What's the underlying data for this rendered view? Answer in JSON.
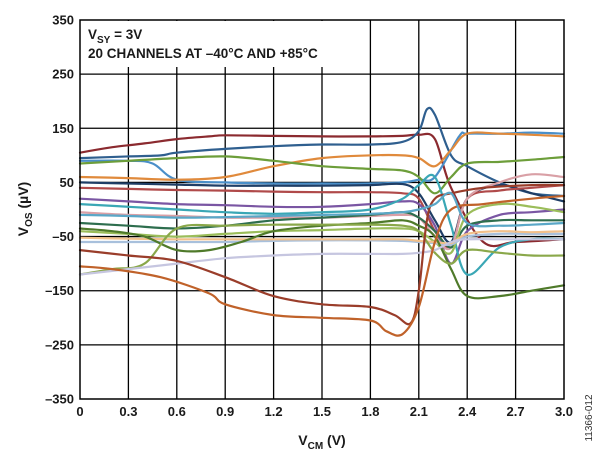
{
  "chart_data": {
    "type": "line",
    "xlabel": {
      "main": "V",
      "sub": "CM",
      "suffix": " (V)"
    },
    "ylabel": {
      "main": "V",
      "sub": "OS",
      "suffix": " (µV)"
    },
    "xlim": [
      0,
      3.0
    ],
    "ylim": [
      -350,
      350
    ],
    "xticks": [
      "0",
      "0.3",
      "0.6",
      "0.9",
      "1.2",
      "1.5",
      "1.8",
      "2.1",
      "2.4",
      "2.7",
      "3.0"
    ],
    "yticks": [
      "350",
      "250",
      "150",
      "50",
      "–50",
      "–150",
      "–250",
      "–350"
    ],
    "grid": true,
    "annotations": {
      "line1": {
        "main": "V",
        "sub": "SY",
        "suffix": " = 3V"
      },
      "line2": "20 CHANNELS AT –40°C AND +85°C"
    },
    "figure_id": "11366-012",
    "series": [
      {
        "color": "#8b2a2f",
        "x": [
          0,
          0.2,
          0.4,
          0.6,
          0.8,
          0.9,
          1.2,
          1.5,
          1.8,
          2.0,
          2.1,
          2.2,
          2.3,
          2.5,
          2.7,
          3.0
        ],
        "y": [
          105,
          115,
          122,
          130,
          135,
          137,
          136,
          135,
          135,
          136,
          138,
          130,
          40,
          -60,
          -60,
          -55
        ]
      },
      {
        "color": "#2f5f8f",
        "x": [
          0,
          0.3,
          0.5,
          0.6,
          0.9,
          1.2,
          1.5,
          1.8,
          2.0,
          2.1,
          2.15,
          2.2,
          2.3,
          2.4,
          2.6,
          2.8,
          3.0
        ],
        "y": [
          95,
          98,
          100,
          105,
          112,
          117,
          120,
          120,
          125,
          145,
          185,
          175,
          100,
          80,
          50,
          30,
          25
        ]
      },
      {
        "color": "#4a8fc9",
        "x": [
          0,
          0.3,
          0.45,
          0.6,
          0.9,
          1.2,
          1.5,
          1.8,
          2.0,
          2.1,
          2.2,
          2.35,
          2.4,
          2.6,
          2.8,
          3.0
        ],
        "y": [
          90,
          90,
          85,
          55,
          50,
          48,
          48,
          48,
          50,
          55,
          60,
          135,
          140,
          140,
          142,
          140
        ]
      },
      {
        "color": "#e08a3c",
        "x": [
          0,
          0.3,
          0.6,
          0.9,
          1.2,
          1.5,
          1.8,
          2.0,
          2.1,
          2.2,
          2.3,
          2.4,
          2.6,
          2.8,
          3.0
        ],
        "y": [
          60,
          58,
          55,
          60,
          80,
          95,
          100,
          100,
          95,
          80,
          110,
          140,
          140,
          138,
          135
        ]
      },
      {
        "color": "#6d9e3a",
        "x": [
          0,
          0.3,
          0.6,
          0.9,
          1.2,
          1.5,
          1.8,
          2.0,
          2.1,
          2.2,
          2.3,
          2.4,
          2.6,
          2.8,
          3.0
        ],
        "y": [
          85,
          90,
          95,
          98,
          90,
          80,
          75,
          72,
          60,
          30,
          60,
          85,
          88,
          92,
          97
        ]
      },
      {
        "color": "#1f3e66",
        "x": [
          0,
          0.3,
          0.6,
          0.9,
          1.2,
          1.5,
          1.8,
          2.0,
          2.1,
          2.2,
          2.3,
          2.4,
          2.6,
          2.8,
          3.0
        ],
        "y": [
          50,
          48,
          46,
          44,
          44,
          44,
          45,
          47,
          30,
          -20,
          -60,
          20,
          45,
          30,
          15
        ]
      },
      {
        "color": "#b04a4a",
        "x": [
          0,
          0.3,
          0.6,
          0.9,
          1.2,
          1.5,
          1.8,
          2.0,
          2.1,
          2.2,
          2.3,
          2.4,
          2.6,
          2.8,
          3.0
        ],
        "y": [
          40,
          38,
          36,
          35,
          33,
          32,
          32,
          30,
          20,
          -40,
          -70,
          20,
          35,
          40,
          45
        ]
      },
      {
        "color": "#7a56a3",
        "x": [
          0,
          0.3,
          0.6,
          0.9,
          1.2,
          1.5,
          1.8,
          2.0,
          2.1,
          2.2,
          2.3,
          2.4,
          2.6,
          2.8,
          3.0
        ],
        "y": [
          20,
          15,
          10,
          8,
          5,
          5,
          10,
          15,
          10,
          -30,
          -100,
          -40,
          -10,
          -5,
          0
        ]
      },
      {
        "color": "#3aa7b5",
        "x": [
          0,
          0.3,
          0.6,
          0.9,
          1.2,
          1.5,
          1.8,
          2.0,
          2.1,
          2.2,
          2.3,
          2.4,
          2.6,
          2.8,
          3.0
        ],
        "y": [
          10,
          5,
          0,
          -5,
          -8,
          -5,
          0,
          20,
          45,
          60,
          -30,
          -120,
          -70,
          -55,
          -55
        ]
      },
      {
        "color": "#d9a0a6",
        "x": [
          0,
          0.3,
          0.6,
          0.9,
          1.2,
          1.5,
          1.8,
          2.0,
          2.1,
          2.2,
          2.3,
          2.4,
          2.6,
          2.8,
          3.0
        ],
        "y": [
          -5,
          -10,
          -12,
          -15,
          -15,
          -15,
          -12,
          -10,
          -15,
          -50,
          -70,
          20,
          50,
          65,
          60
        ]
      },
      {
        "color": "#2e6e4e",
        "x": [
          0,
          0.3,
          0.6,
          0.9,
          1.2,
          1.5,
          1.8,
          2.0,
          2.1,
          2.2,
          2.3,
          2.4,
          2.6,
          2.8,
          3.0
        ],
        "y": [
          -25,
          -30,
          -35,
          -30,
          -20,
          -15,
          -10,
          -5,
          -15,
          -40,
          -70,
          -30,
          -20,
          -20,
          -20
        ]
      },
      {
        "color": "#9bbd5a",
        "x": [
          0,
          0.3,
          0.6,
          0.9,
          1.2,
          1.5,
          1.8,
          2.0,
          2.1,
          2.2,
          2.3,
          2.4,
          2.6,
          2.8,
          3.0
        ],
        "y": [
          -40,
          -45,
          -50,
          -45,
          -40,
          -38,
          -35,
          -35,
          -40,
          -60,
          -80,
          -10,
          10,
          5,
          -5
        ]
      },
      {
        "color": "#a8c0dc",
        "x": [
          0,
          0.3,
          0.6,
          0.9,
          1.2,
          1.5,
          1.8,
          2.0,
          2.1,
          2.2,
          2.3,
          2.4,
          2.6,
          2.8,
          3.0
        ],
        "y": [
          -60,
          -60,
          -60,
          -60,
          -58,
          -57,
          -57,
          -58,
          -60,
          -62,
          -65,
          -50,
          -45,
          -45,
          -45
        ]
      },
      {
        "color": "#f2c08a",
        "x": [
          0,
          0.3,
          0.6,
          0.9,
          1.2,
          1.5,
          1.8,
          2.0,
          2.1,
          2.2,
          2.3,
          2.4,
          2.6,
          2.8,
          3.0
        ],
        "y": [
          -52,
          -54,
          -55,
          -55,
          -55,
          -55,
          -55,
          -55,
          -58,
          -60,
          -62,
          -45,
          -40,
          -42,
          -40
        ]
      },
      {
        "color": "#4f7a2a",
        "x": [
          0,
          0.2,
          0.4,
          0.6,
          0.8,
          1.0,
          1.2,
          1.5,
          1.8,
          2.0,
          2.1,
          2.2,
          2.3,
          2.4,
          2.6,
          2.8,
          3.0
        ],
        "y": [
          -35,
          -40,
          -50,
          -75,
          -75,
          -60,
          -40,
          -30,
          -25,
          -20,
          -30,
          -50,
          -110,
          -160,
          -160,
          -150,
          -140
        ]
      },
      {
        "color": "#8aa84a",
        "x": [
          0,
          0.2,
          0.4,
          0.6,
          0.9,
          1.2,
          1.5,
          1.8,
          2.0,
          2.1,
          2.2,
          2.3,
          2.4,
          2.6,
          2.8,
          3.0
        ],
        "y": [
          -120,
          -110,
          -100,
          -35,
          -30,
          -28,
          -28,
          -28,
          -30,
          -40,
          -80,
          -100,
          -75,
          -80,
          -85,
          -85
        ]
      },
      {
        "color": "#c6c6e0",
        "x": [
          0,
          0.3,
          0.6,
          0.9,
          1.2,
          1.5,
          1.8,
          2.0,
          2.1,
          2.2,
          2.3,
          2.4,
          2.6,
          2.8,
          3.0
        ],
        "y": [
          -120,
          -110,
          -100,
          -90,
          -85,
          -82,
          -82,
          -82,
          -80,
          -75,
          -60,
          -55,
          -55,
          -55,
          -55
        ]
      },
      {
        "color": "#9a3d2a",
        "x": [
          0,
          0.3,
          0.6,
          0.9,
          1.2,
          1.5,
          1.8,
          1.95,
          2.05,
          2.1,
          2.15,
          2.2,
          2.3,
          2.5,
          2.8,
          3.0
        ],
        "y": [
          -75,
          -85,
          -95,
          -125,
          -160,
          -175,
          -180,
          -195,
          -210,
          -150,
          -20,
          20,
          30,
          40,
          45,
          45
        ]
      },
      {
        "color": "#c0622a",
        "x": [
          0,
          0.2,
          0.5,
          0.8,
          0.9,
          1.2,
          1.5,
          1.8,
          1.9,
          2.0,
          2.1,
          2.2,
          2.3,
          2.5,
          2.8,
          3.0
        ],
        "y": [
          -105,
          -110,
          -125,
          -155,
          -175,
          -195,
          -200,
          -205,
          -225,
          -230,
          -180,
          -60,
          0,
          10,
          20,
          25
        ]
      },
      {
        "color": "#5aa7c7",
        "x": [
          0,
          0.3,
          0.6,
          0.9,
          1.2,
          1.5,
          1.8,
          2.0,
          2.1,
          2.2,
          2.3,
          2.4,
          2.6,
          2.8,
          3.0
        ],
        "y": [
          -10,
          -12,
          -15,
          -14,
          -12,
          -10,
          -8,
          -5,
          0,
          10,
          30,
          -25,
          -30,
          -28,
          -25
        ]
      }
    ]
  }
}
